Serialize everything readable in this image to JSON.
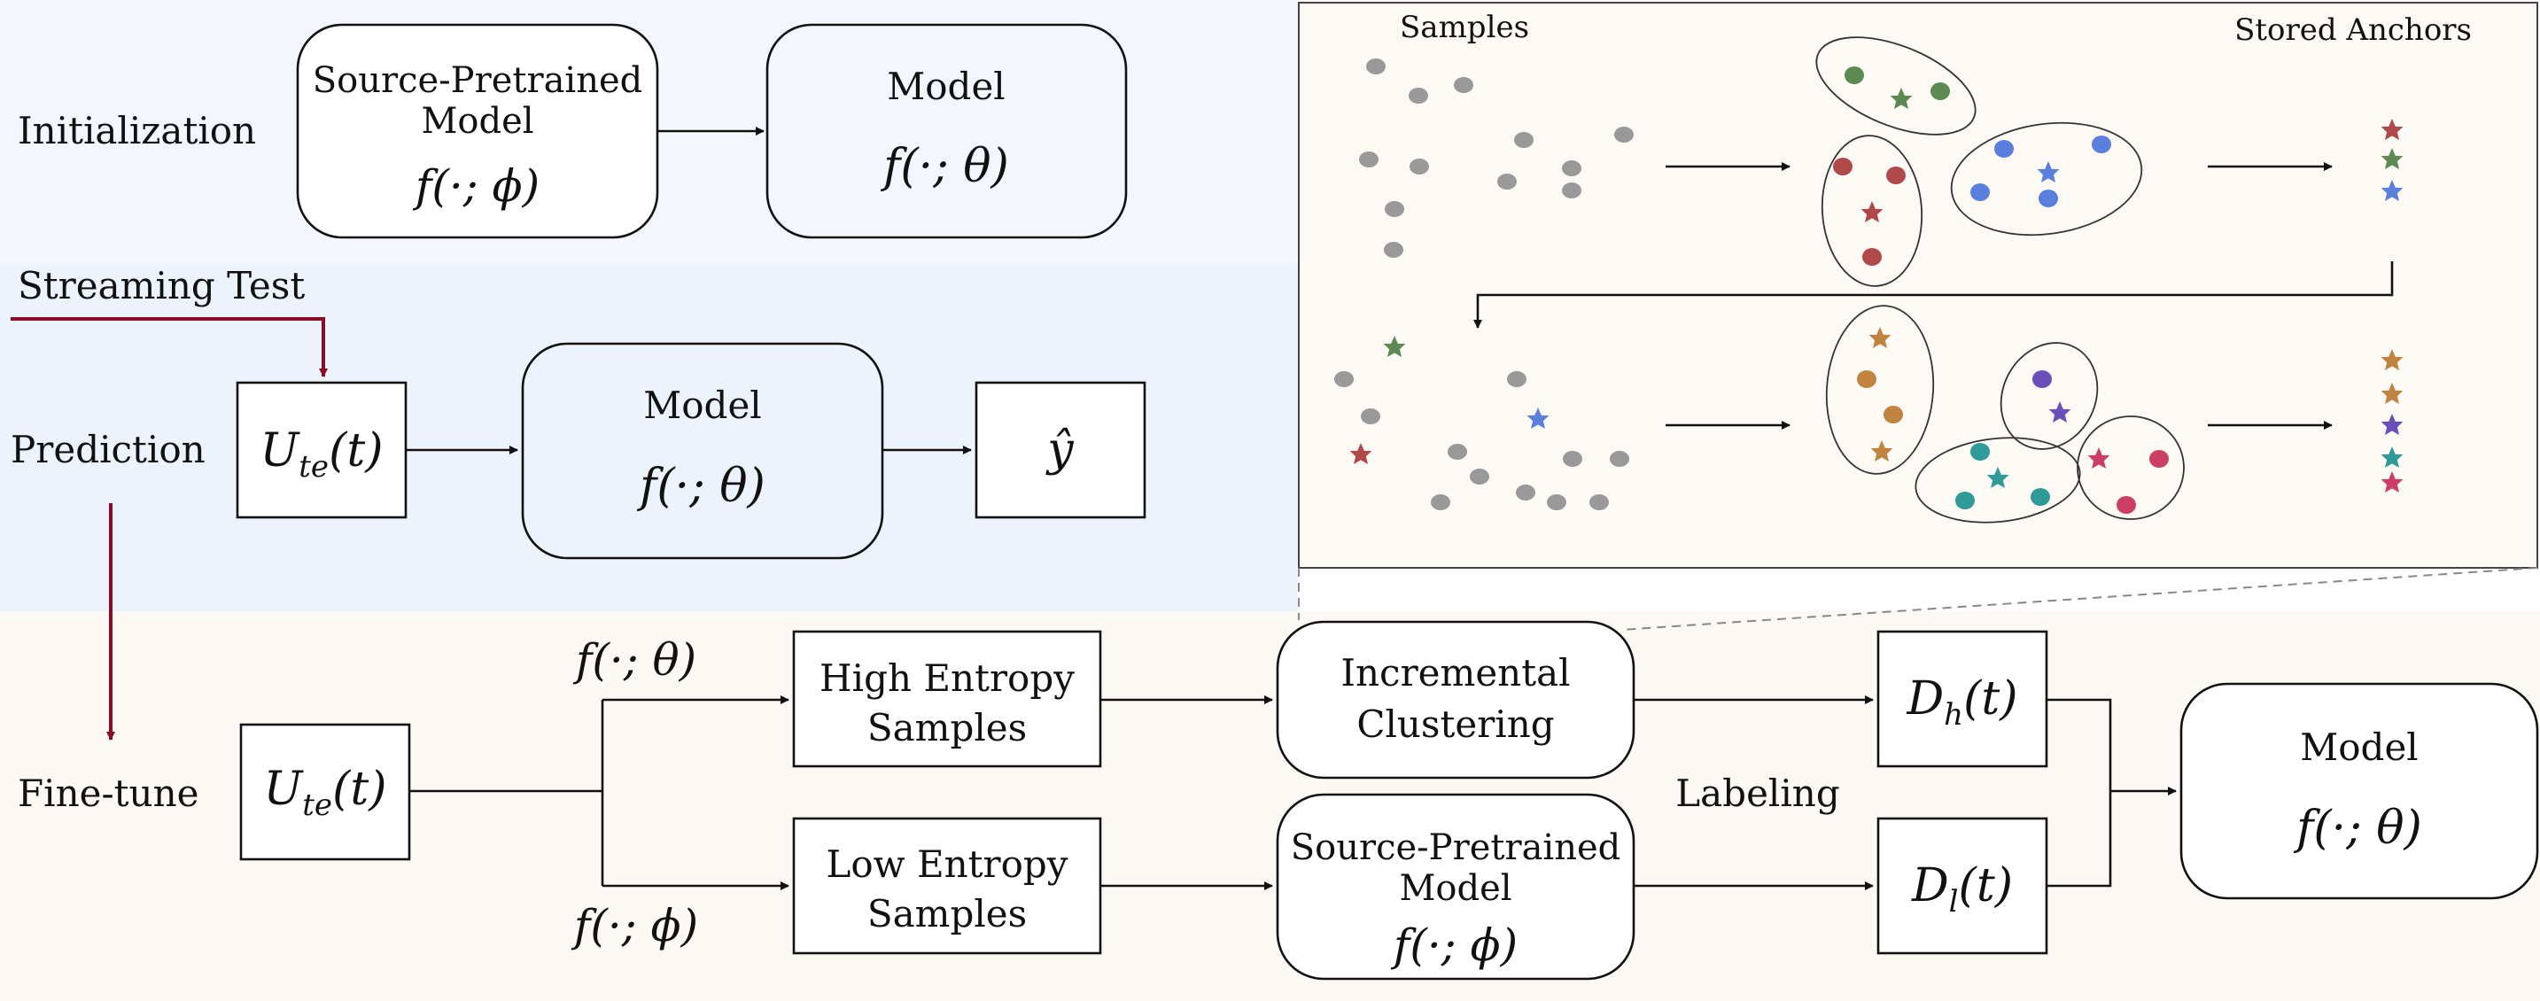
{
  "phases": {
    "initialization": "Initialization",
    "streaming_test": "Streaming Test",
    "prediction": "Prediction",
    "fine_tune": "Fine-tune"
  },
  "boxes": {
    "source_model_line1": "Source-Pretrained",
    "source_model_line2": "Model",
    "source_model_fn": "f(·; ϕ)",
    "model_label": "Model",
    "model_fn": "f(·; θ)",
    "u_te": "Ute(t)",
    "y_hat": "ŷ",
    "high_entropy_line1": "High Entropy",
    "high_entropy_line2": "Samples",
    "low_entropy_line1": "Low Entropy",
    "low_entropy_line2": "Samples",
    "incremental_line1": "Incremental",
    "incremental_line2": "Clustering",
    "d_h": "Dh(t)",
    "d_l": "Dl(t)"
  },
  "branch_labels": {
    "top": "f(·; θ)",
    "bottom": "f(·; ϕ)",
    "labeling": "Labeling"
  },
  "inset": {
    "samples_label": "Samples",
    "anchors_label": "Stored Anchors"
  },
  "colors": {
    "init_bg": "#f3f7fd",
    "pred_bg": "#ecf3fc",
    "finetune_bg": "#fcf9f5",
    "inset_bg": "#fdfaf6",
    "stream_arrow": "#8b0a24",
    "gray_sample": "#999999",
    "cluster_red": "#b04a4a",
    "cluster_green": "#5c8a52",
    "cluster_blue": "#5a7fdc",
    "cluster_orange": "#c08440",
    "cluster_purple": "#6a4fb8",
    "cluster_teal": "#2f9a98",
    "cluster_pink": "#cc3f64"
  }
}
